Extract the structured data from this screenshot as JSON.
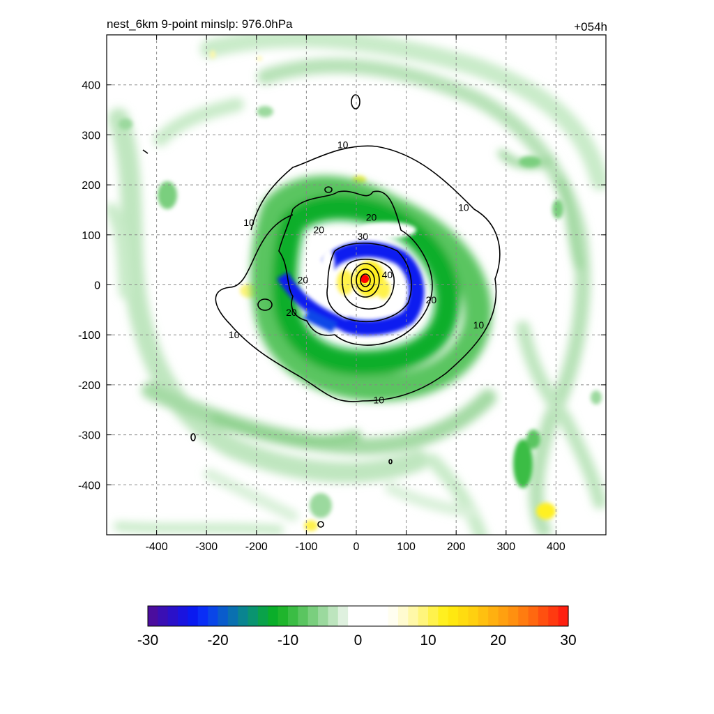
{
  "figure": {
    "title_left": "nest_6km  9-point minslp: 976.0hPa",
    "title_right": "+054h"
  },
  "chart_data": {
    "type": "heatmap",
    "field_description": "filled contour field with black line contours (isotachs) around a storm center",
    "xlim": [
      -500,
      500
    ],
    "ylim": [
      -500,
      500
    ],
    "x_ticks": [
      -400,
      -300,
      -200,
      -100,
      0,
      100,
      200,
      300,
      400
    ],
    "y_ticks": [
      400,
      300,
      200,
      100,
      0,
      -100,
      -200,
      -300,
      -400
    ],
    "grid": true,
    "grid_style": "dashed",
    "storm_center": [
      15,
      12
    ],
    "line_contour_labels": [
      {
        "text": "10",
        "x": -215,
        "y": 125
      },
      {
        "text": "10",
        "x": -27,
        "y": 280
      },
      {
        "text": "10",
        "x": 215,
        "y": 155
      },
      {
        "text": "10",
        "x": 245,
        "y": -80
      },
      {
        "text": "10",
        "x": 45,
        "y": -230
      },
      {
        "text": "10",
        "x": -245,
        "y": -100
      },
      {
        "text": "20",
        "x": -75,
        "y": 110
      },
      {
        "text": "20",
        "x": 30,
        "y": 135
      },
      {
        "text": "20",
        "x": 150,
        "y": -30
      },
      {
        "text": "20",
        "x": -107,
        "y": 10
      },
      {
        "text": "20",
        "x": -130,
        "y": -55
      },
      {
        "text": "30",
        "x": 13,
        "y": 97
      },
      {
        "text": "40",
        "x": 62,
        "y": 20
      }
    ],
    "colorbar": {
      "min": -30,
      "max": 30,
      "tick_labels": [
        "-30",
        "-20",
        "-10",
        "0",
        "10",
        "20",
        "30"
      ],
      "colors": [
        "#4b0d9e",
        "#3a0fb4",
        "#2a11c9",
        "#1a14df",
        "#0a1af0",
        "#0a2ef6",
        "#0a46e8",
        "#0a5ccc",
        "#0a70b0",
        "#0a8490",
        "#0a9470",
        "#0aa24a",
        "#0aae2a",
        "#1fb52c",
        "#3bbd44",
        "#5ac560",
        "#7acf7e",
        "#9bd99e",
        "#bde5be",
        "#dff1df",
        "#ffffff",
        "#ffffff",
        "#ffffff",
        "#ffffff",
        "#fffef0",
        "#fffbd0",
        "#fff8a8",
        "#fff57c",
        "#fff24c",
        "#fff020",
        "#ffe810",
        "#ffdc10",
        "#ffd010",
        "#ffc010",
        "#ffb010",
        "#ffa010",
        "#ff9010",
        "#ff7c10",
        "#ff6810",
        "#ff5010",
        "#ff3a10",
        "#ff2010"
      ]
    },
    "marker": {
      "name": "storm-center",
      "color": "#ff0000"
    }
  }
}
